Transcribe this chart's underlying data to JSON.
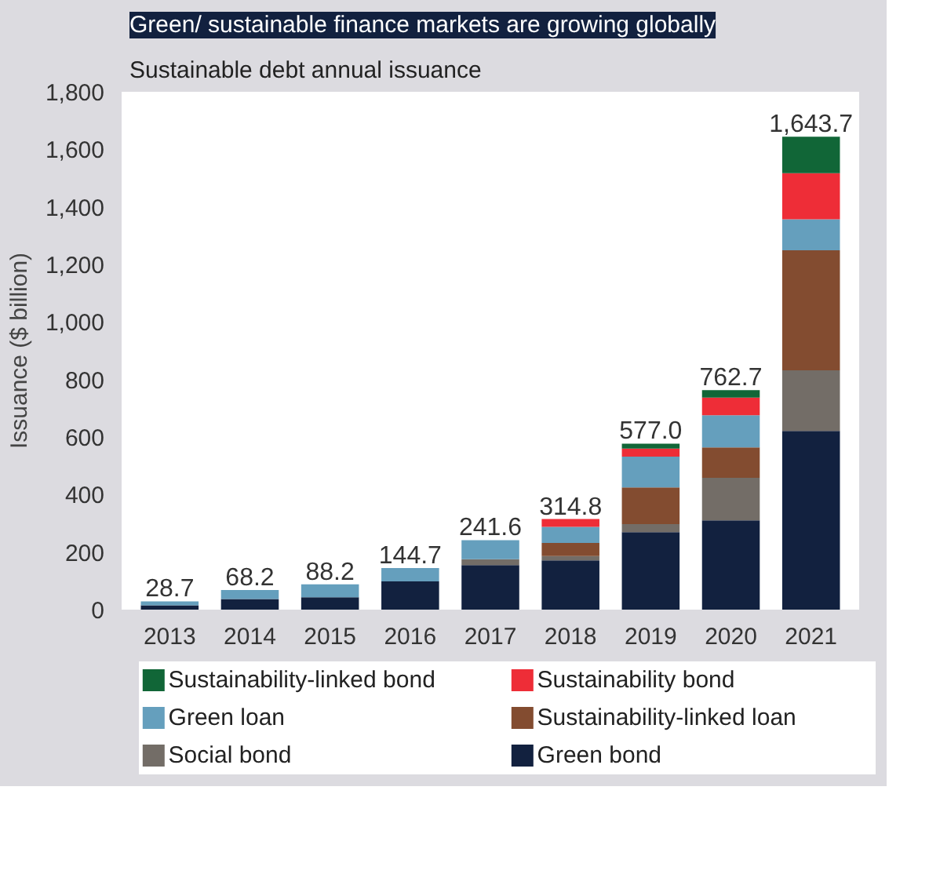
{
  "chart_data": {
    "type": "bar",
    "stacked": true,
    "title": "Green/ sustainable finance markets are growing globally",
    "subtitle": "Sustainable debt annual issuance",
    "ylabel": "Issuance ($ billion)",
    "categories": [
      "2013",
      "2014",
      "2015",
      "2016",
      "2017",
      "2018",
      "2019",
      "2020",
      "2021"
    ],
    "series": [
      {
        "name": "Green bond",
        "color": "#12213f",
        "values": [
          15,
          37,
          43,
          98,
          155,
          171,
          269,
          310,
          621
        ]
      },
      {
        "name": "Social bond",
        "color": "#736d67",
        "values": [
          0,
          0,
          0,
          0,
          20,
          15,
          28,
          148,
          211
        ]
      },
      {
        "name": "Sustainability-linked loan",
        "color": "#834c30",
        "values": [
          0,
          0,
          0,
          0,
          0,
          46,
          128,
          106,
          417
        ]
      },
      {
        "name": "Green loan",
        "color": "#659fbd",
        "values": [
          13.7,
          31.2,
          45.2,
          46.7,
          66.6,
          56,
          107,
          112,
          108
        ]
      },
      {
        "name": "Sustainability bond",
        "color": "#ee2d37",
        "values": [
          0,
          0,
          0,
          0,
          0,
          26.8,
          28,
          61,
          160
        ]
      },
      {
        "name": "Sustainability-linked bond",
        "color": "#116637",
        "values": [
          0,
          0,
          0,
          0,
          0,
          0,
          17,
          25.7,
          126.7
        ]
      }
    ],
    "totals": [
      "28.7",
      "68.2",
      "88.2",
      "144.7",
      "241.6",
      "314.8",
      "577.0",
      "762.7",
      "1,643.7"
    ],
    "ylim": [
      0,
      1800
    ],
    "yticks": [
      0,
      200,
      400,
      600,
      800,
      {
        "value": 1000,
        "label": "1,000"
      },
      {
        "value": 1200,
        "label": "1,200"
      },
      {
        "value": 1400,
        "label": "1,400"
      },
      {
        "value": 1600,
        "label": "1,600"
      },
      {
        "value": 1800,
        "label": "1,800"
      }
    ],
    "grid": false,
    "legend": "bottom"
  }
}
